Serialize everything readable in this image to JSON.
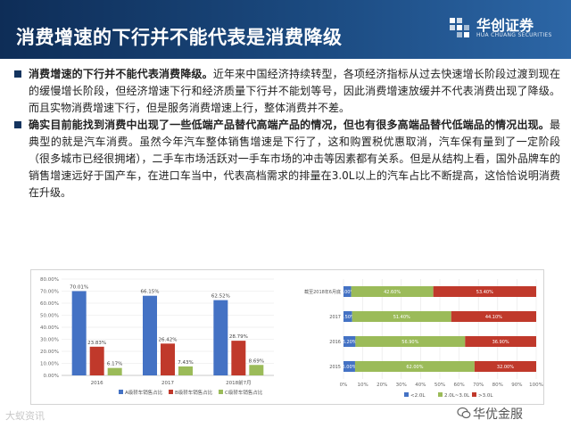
{
  "header": {
    "title": "消费增速的下行并不能代表是消费降级",
    "logo_cn": "华创证券",
    "logo_en": "HUA CHUANG SECURITIES"
  },
  "paragraphs": [
    {
      "bold": "消费增速的下行并不能代表消费降级。",
      "text": "近年来中国经济持续转型，各项经济指标从过去快速增长阶段过渡到现在的缓慢增长阶段，但经济增速下行和经济质量下行并不能划等号，因此消费增速放缓并不代表消费出现了降级。而且实物消费增速下行，但是服务消费增速上行，整体消费并不差。"
    },
    {
      "bold": "确实目前能找到消费中出现了一些低端产品替代高端产品的情况，但也有很多高端品替代低端品的情况出现。",
      "text": "最典型的就是汽车消费。虽然今年汽车整体销售增速是下行了，这和购置税优惠取消，汽车保有量到了一定阶段（很多城市已经很拥堵），二手车市场活跃对一手车市场的冲击等因素都有关系。但是从结构上看，国外品牌车的销售增速远好于国产车，在进口车当中，代表高档需求的排量在3.0L以上的汽车占比不断提高，这恰恰说明消费在升级。"
    }
  ],
  "chart_data": [
    {
      "type": "bar",
      "title": "",
      "categories": [
        "2016",
        "2017",
        "2018前7月"
      ],
      "series": [
        {
          "name": "A级轿车销售占比",
          "values": [
            70.01,
            66.15,
            62.52
          ],
          "color": "#4472c4"
        },
        {
          "name": "B级轿车销售占比",
          "values": [
            23.83,
            26.42,
            28.79
          ],
          "color": "#c0392b"
        },
        {
          "name": "C级轿车销售占比",
          "values": [
            6.17,
            7.43,
            8.69
          ],
          "color": "#9bbb59"
        }
      ],
      "value_labels": [
        [
          "70.01%",
          "66.15%",
          "62.52%"
        ],
        [
          "23.83%",
          "26.42%",
          "28.79%"
        ],
        [
          "6.17%",
          "7.43%",
          "8.69%"
        ]
      ],
      "yticks": [
        "0.00%",
        "10.00%",
        "20.00%",
        "30.00%",
        "40.00%",
        "50.00%",
        "60.00%",
        "70.00%",
        "80.00%"
      ],
      "ylim": [
        0,
        80
      ],
      "legend": "bottom"
    },
    {
      "type": "bar",
      "orientation": "horizontal-stacked",
      "categories": [
        "2015",
        "2016",
        "2017",
        "截至2018年6月底"
      ],
      "category_labels": [
        "2015",
        "2016",
        "2017",
        "截至2018年6月底"
      ],
      "series": [
        {
          "name": "<2.0L",
          "values": [
            6.0,
            6.2,
            4.5,
            4.0
          ],
          "color": "#4472c4"
        },
        {
          "name": "2.0L~3.0L",
          "values": [
            62.0,
            56.9,
            51.4,
            42.6
          ],
          "color": "#9bbb59"
        },
        {
          "name": ">3.0L",
          "values": [
            32.0,
            36.9,
            44.1,
            53.4
          ],
          "color": "#c0392b"
        }
      ],
      "value_labels": [
        [
          "6.00%",
          "6.20%",
          "4.50%",
          "4.00%"
        ],
        [
          "62.00%",
          "56.90%",
          "51.40%",
          "42.60%"
        ],
        [
          "32.00%",
          "36.90%",
          "44.10%",
          "53.40%"
        ]
      ],
      "xticks": [
        "0%",
        "10%",
        "20%",
        "30%",
        "40%",
        "50%",
        "60%",
        "70%",
        "80%",
        "90%",
        "100%"
      ],
      "xlim": [
        0,
        100
      ],
      "legend": "bottom"
    }
  ],
  "footer": {
    "left": "大蚁资讯",
    "right": "华优金服"
  }
}
